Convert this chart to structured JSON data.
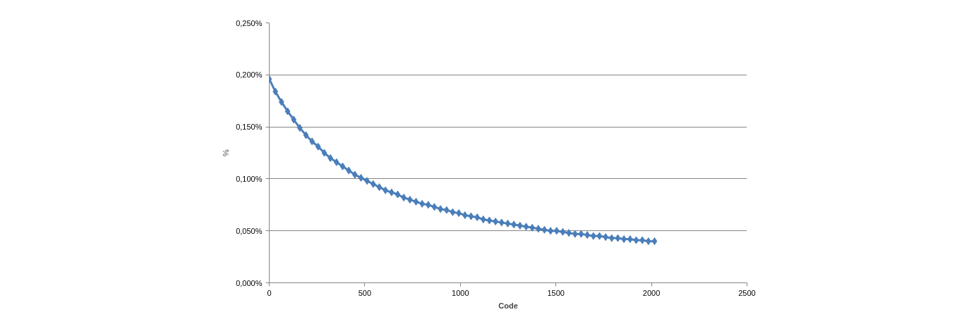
{
  "chart_data": {
    "type": "line",
    "xlabel": "Code",
    "ylabel": "%",
    "x": [
      0,
      32,
      64,
      96,
      128,
      160,
      192,
      224,
      256,
      288,
      320,
      352,
      384,
      416,
      448,
      480,
      512,
      544,
      576,
      608,
      640,
      672,
      704,
      736,
      768,
      800,
      832,
      864,
      896,
      928,
      960,
      992,
      1024,
      1056,
      1088,
      1120,
      1152,
      1184,
      1216,
      1248,
      1280,
      1312,
      1344,
      1376,
      1408,
      1440,
      1472,
      1504,
      1536,
      1568,
      1600,
      1632,
      1664,
      1696,
      1728,
      1760,
      1792,
      1824,
      1856,
      1888,
      1920,
      1952,
      1984,
      2016
    ],
    "series": [
      {
        "color": "#4a7ebb",
        "values": [
          0.196,
          0.184,
          0.174,
          0.165,
          0.157,
          0.149,
          0.142,
          0.136,
          0.131,
          0.125,
          0.12,
          0.116,
          0.112,
          0.108,
          0.104,
          0.101,
          0.098,
          0.095,
          0.092,
          0.089,
          0.087,
          0.085,
          0.082,
          0.08,
          0.078,
          0.076,
          0.075,
          0.073,
          0.071,
          0.07,
          0.068,
          0.067,
          0.065,
          0.064,
          0.063,
          0.061,
          0.06,
          0.059,
          0.058,
          0.057,
          0.056,
          0.055,
          0.054,
          0.053,
          0.052,
          0.051,
          0.05,
          0.05,
          0.049,
          0.048,
          0.047,
          0.047,
          0.046,
          0.045,
          0.045,
          0.044,
          0.043,
          0.043,
          0.042,
          0.042,
          0.041,
          0.041,
          0.04,
          0.04
        ]
      }
    ],
    "xlim": [
      0,
      2500
    ],
    "xticks": [
      0,
      500,
      1000,
      1500,
      2000,
      2500
    ],
    "ylim": [
      0,
      0.25
    ],
    "yticks": [
      {
        "value": 0,
        "label": "0,000%"
      },
      {
        "value": 0.05,
        "label": "0,050%"
      },
      {
        "value": 0.1,
        "label": "0,100%"
      },
      {
        "value": 0.15,
        "label": "0,150%"
      },
      {
        "value": 0.2,
        "label": "0,200%"
      },
      {
        "value": 0.25,
        "label": "0,250%"
      }
    ],
    "grid": "y",
    "marker": "diamond",
    "line_style": "solid"
  }
}
